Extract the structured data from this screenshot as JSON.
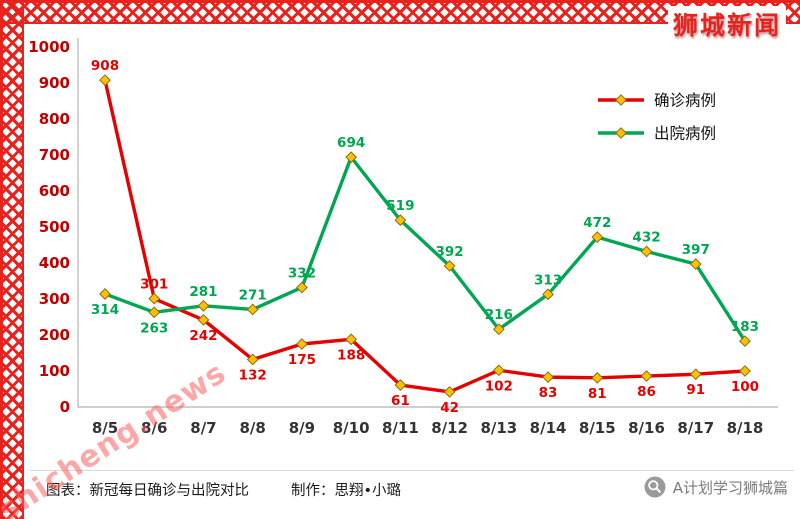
{
  "page": {
    "site_name": "狮城新闻",
    "watermark": "shicheng.news"
  },
  "footer": {
    "caption": "图表：新冠每日确诊与出院对比",
    "credit": "制作：思翔•小璐",
    "account": "A计划学习狮城篇"
  },
  "colors": {
    "border_red": "#e8231d",
    "axis_gray": "#bfbfbf",
    "ytick_red": "#c00000",
    "xtick_dark": "#333333",
    "legend_text": "#111111"
  },
  "chart_data": {
    "type": "line",
    "title": "",
    "xlabel": "",
    "ylabel": "",
    "categories": [
      "8/5",
      "8/6",
      "8/7",
      "8/8",
      "8/9",
      "8/10",
      "8/11",
      "8/12",
      "8/13",
      "8/14",
      "8/15",
      "8/16",
      "8/17",
      "8/18"
    ],
    "series": [
      {
        "name": "确诊病例",
        "color": "#e60000",
        "values": [
          908,
          301,
          242,
          132,
          175,
          188,
          61,
          42,
          102,
          83,
          81,
          86,
          91,
          100
        ],
        "label_side": [
          "above",
          "above",
          "below",
          "below",
          "below",
          "below",
          "below",
          "below",
          "below",
          "below",
          "below",
          "below",
          "below",
          "below"
        ]
      },
      {
        "name": "出院病例",
        "color": "#00a650",
        "values": [
          314,
          263,
          281,
          271,
          332,
          694,
          519,
          392,
          216,
          313,
          472,
          432,
          397,
          183
        ],
        "label_side": [
          "below",
          "below",
          "above",
          "above",
          "above",
          "above",
          "above",
          "above",
          "above",
          "above",
          "above",
          "above",
          "above",
          "above"
        ]
      }
    ],
    "ylim": [
      0,
      1000
    ],
    "ytick_step": 100,
    "grid": false,
    "legend_position": "top-right",
    "marker": {
      "shape": "diamond",
      "fill": "#ffc000",
      "stroke": "#8a6d1f"
    }
  }
}
